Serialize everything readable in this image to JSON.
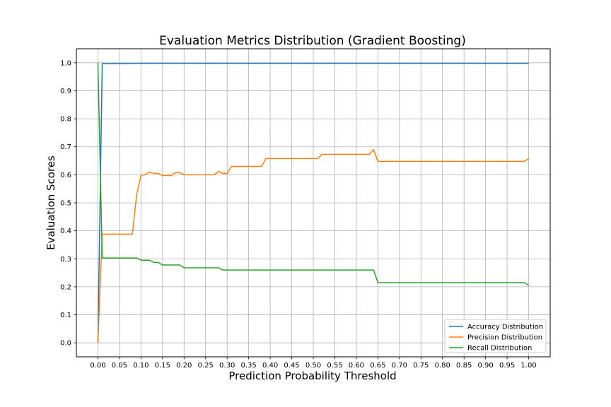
{
  "chart_data": {
    "type": "line",
    "title": "Evaluation Metrics Distribution (Gradient Boosting)",
    "xlabel": "Prediction Probability Threshold",
    "ylabel": "Evaluation Scores",
    "xlim": [
      -0.05,
      1.05
    ],
    "ylim": [
      -0.05,
      1.05
    ],
    "grid": true,
    "legend_position": "lower right",
    "x_ticks": [
      "0.00",
      "0.05",
      "0.10",
      "0.15",
      "0.20",
      "0.25",
      "0.30",
      "0.35",
      "0.40",
      "0.45",
      "0.50",
      "0.55",
      "0.60",
      "0.65",
      "0.70",
      "0.75",
      "0.80",
      "0.85",
      "0.90",
      "0.95",
      "1.00"
    ],
    "y_ticks": [
      "0.0",
      "0.1",
      "0.2",
      "0.3",
      "0.4",
      "0.5",
      "0.6",
      "0.7",
      "0.8",
      "0.9",
      "1.0"
    ],
    "series": [
      {
        "name": "Accuracy Distribution",
        "color": "#1f77b4",
        "points": [
          [
            0.0,
            0.0
          ],
          [
            0.01,
            0.997
          ],
          [
            0.05,
            0.997
          ],
          [
            0.1,
            0.998
          ],
          [
            0.3,
            0.998
          ],
          [
            0.65,
            0.998
          ],
          [
            1.0,
            0.998
          ]
        ]
      },
      {
        "name": "Precision Distribution",
        "color": "#ff7f0e",
        "points": [
          [
            0.0,
            0.0
          ],
          [
            0.01,
            0.388
          ],
          [
            0.02,
            0.388
          ],
          [
            0.08,
            0.388
          ],
          [
            0.09,
            0.53
          ],
          [
            0.1,
            0.598
          ],
          [
            0.11,
            0.6
          ],
          [
            0.12,
            0.61
          ],
          [
            0.13,
            0.605
          ],
          [
            0.14,
            0.605
          ],
          [
            0.15,
            0.597
          ],
          [
            0.16,
            0.597
          ],
          [
            0.17,
            0.597
          ],
          [
            0.18,
            0.608
          ],
          [
            0.19,
            0.608
          ],
          [
            0.2,
            0.6
          ],
          [
            0.27,
            0.6
          ],
          [
            0.28,
            0.612
          ],
          [
            0.29,
            0.605
          ],
          [
            0.3,
            0.605
          ],
          [
            0.31,
            0.63
          ],
          [
            0.38,
            0.63
          ],
          [
            0.39,
            0.658
          ],
          [
            0.51,
            0.658
          ],
          [
            0.52,
            0.673
          ],
          [
            0.63,
            0.673
          ],
          [
            0.64,
            0.69
          ],
          [
            0.65,
            0.648
          ],
          [
            0.99,
            0.648
          ],
          [
            1.0,
            0.658
          ]
        ]
      },
      {
        "name": "Recall Distribution",
        "color": "#2ca02c",
        "points": [
          [
            0.0,
            1.0
          ],
          [
            0.01,
            0.303
          ],
          [
            0.09,
            0.303
          ],
          [
            0.1,
            0.295
          ],
          [
            0.12,
            0.295
          ],
          [
            0.13,
            0.287
          ],
          [
            0.14,
            0.287
          ],
          [
            0.15,
            0.278
          ],
          [
            0.19,
            0.278
          ],
          [
            0.2,
            0.268
          ],
          [
            0.28,
            0.268
          ],
          [
            0.29,
            0.26
          ],
          [
            0.64,
            0.26
          ],
          [
            0.65,
            0.215
          ],
          [
            0.99,
            0.215
          ],
          [
            1.0,
            0.205
          ]
        ]
      }
    ]
  }
}
